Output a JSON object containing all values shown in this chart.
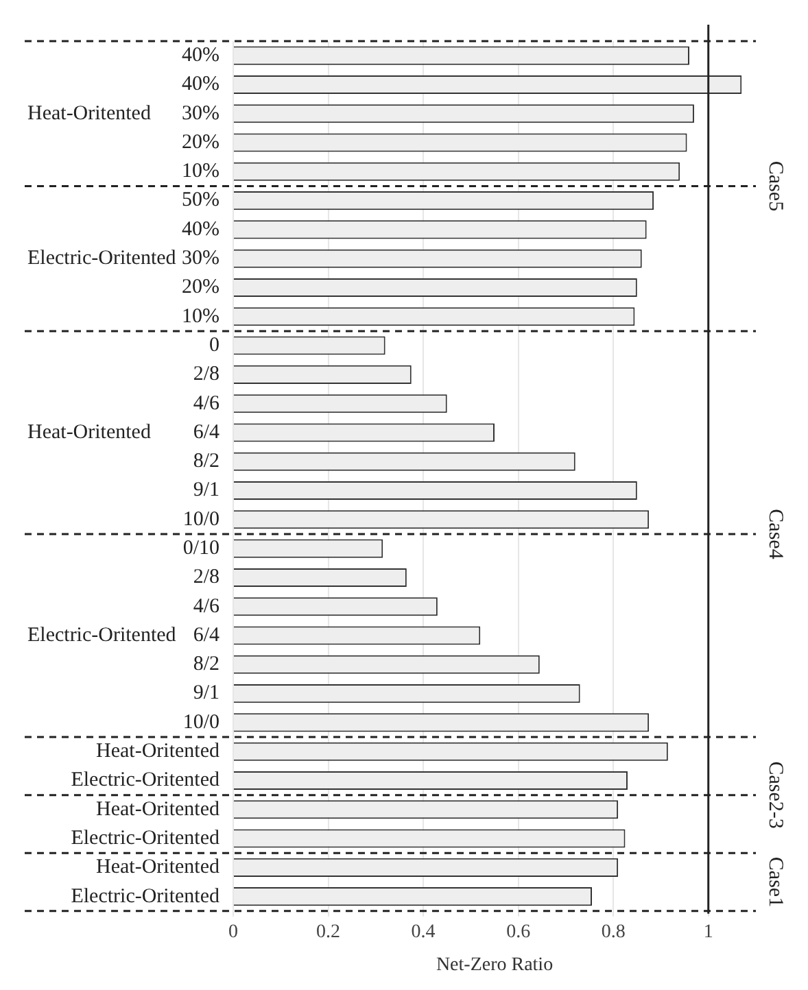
{
  "chart_data": {
    "type": "bar",
    "orientation": "horizontal",
    "xlabel": "Net-Zero Ratio",
    "categories": [
      "40%",
      "40%",
      "30%",
      "20%",
      "10%",
      "50%",
      "40%",
      "30%",
      "20%",
      "10%",
      "0",
      "2/8",
      "4/6",
      "6/4",
      "8/2",
      "9/1",
      "10/0",
      "0/10",
      "2/8",
      "4/6",
      "6/4",
      "8/2",
      "9/1",
      "10/0",
      "Heat-Oritented",
      "Electric-Oritented",
      "Heat-Oritented",
      "Electric-Oritented",
      "Heat-Oritented",
      "Electric-Oritented"
    ],
    "values": [
      0.96,
      1.07,
      0.97,
      0.955,
      0.94,
      0.885,
      0.87,
      0.86,
      0.85,
      0.845,
      0.32,
      0.375,
      0.45,
      0.55,
      0.72,
      0.85,
      0.875,
      0.315,
      0.365,
      0.43,
      0.52,
      0.645,
      0.73,
      0.875,
      0.915,
      0.83,
      0.81,
      0.825,
      0.81,
      0.755
    ],
    "color": "#eeeeee",
    "xlim": [
      0,
      1.1
    ],
    "xticks": [
      0,
      0.2,
      0.4,
      0.6,
      0.8,
      1
    ],
    "grid": "x",
    "ref_lines": [
      {
        "axis": "x",
        "value": 1,
        "color": "#222222",
        "line_style": "solid"
      }
    ],
    "annotations": [
      "Heat-Oritented",
      "Electric-Oritented",
      "Heat-Oritented",
      "Electric-Oritented",
      "Case5",
      "Case4",
      "Case2-3",
      "Case1"
    ]
  }
}
